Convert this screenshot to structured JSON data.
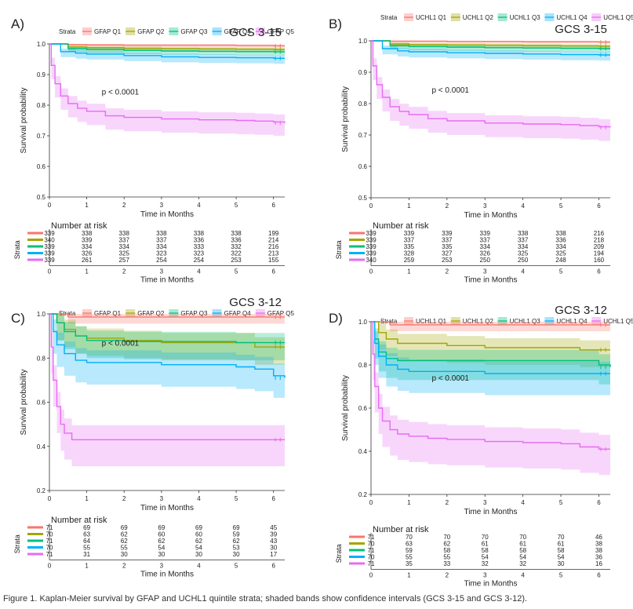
{
  "colors": {
    "q1": "#F8766D",
    "q2": "#A3A500",
    "q3": "#00BF7D",
    "q4": "#00B0F6",
    "q5": "#E76BF3"
  },
  "caption": "Figure 1. Kaplan-Meier survival by GFAP and UCHL1 quintile strata; shaded bands show confidence intervals (GCS 3-15 and GCS 3-12).",
  "chart_data": [
    {
      "id": "A",
      "panel_label": "A)",
      "type": "line",
      "subtitle": "GCS 3-15",
      "p_value": "p < 0.0001",
      "legend_title": "Strata",
      "legend_position": "top",
      "xlabel": "Time in Months",
      "ylabel": "Survival probability",
      "xlim": [
        0,
        6.3
      ],
      "ylim": [
        0.5,
        1.0
      ],
      "xticks": [
        0,
        1,
        2,
        3,
        4,
        5,
        6
      ],
      "yticks": [
        0.5,
        0.6,
        0.7,
        0.8,
        0.9,
        1.0
      ],
      "risk_title": "Number at risk",
      "risk_ylabel": "Strata",
      "series": [
        {
          "name": "GFAP Q1",
          "color": "#F8766D",
          "ci": 0.006,
          "x": [
            0,
            0.5,
            1,
            2,
            3,
            4,
            5,
            6,
            6.3
          ],
          "y": [
            1.0,
            0.998,
            0.997,
            0.996,
            0.996,
            0.996,
            0.995,
            0.994,
            0.994
          ],
          "risk": [
            339,
            338,
            338,
            338,
            338,
            338,
            199
          ]
        },
        {
          "name": "GFAP Q2",
          "color": "#A3A500",
          "ci": 0.01,
          "x": [
            0,
            0.5,
            1,
            2,
            3,
            4,
            5,
            6,
            6.3
          ],
          "y": [
            1.0,
            0.99,
            0.988,
            0.986,
            0.985,
            0.984,
            0.983,
            0.982,
            0.982
          ],
          "risk": [
            340,
            339,
            337,
            337,
            336,
            336,
            214
          ]
        },
        {
          "name": "GFAP Q3",
          "color": "#00BF7D",
          "ci": 0.012,
          "x": [
            0,
            0.5,
            1,
            2,
            3,
            4,
            5,
            6,
            6.3
          ],
          "y": [
            1.0,
            0.985,
            0.982,
            0.979,
            0.977,
            0.976,
            0.975,
            0.974,
            0.974
          ],
          "risk": [
            339,
            334,
            334,
            334,
            333,
            332,
            216
          ]
        },
        {
          "name": "GFAP Q4",
          "color": "#00B0F6",
          "ci": 0.018,
          "x": [
            0,
            0.3,
            0.7,
            1,
            2,
            3,
            4,
            5,
            6,
            6.3
          ],
          "y": [
            1.0,
            0.975,
            0.97,
            0.967,
            0.962,
            0.958,
            0.956,
            0.955,
            0.953,
            0.953
          ],
          "risk": [
            339,
            326,
            325,
            323,
            323,
            322,
            213
          ]
        },
        {
          "name": "GFAP Q5",
          "color": "#E76BF3",
          "ci": 0.045,
          "x": [
            0,
            0.05,
            0.15,
            0.3,
            0.5,
            0.75,
            1,
            1.5,
            2,
            3,
            4,
            5,
            5.5,
            6,
            6.3
          ],
          "y": [
            1.0,
            0.93,
            0.87,
            0.83,
            0.805,
            0.79,
            0.78,
            0.765,
            0.76,
            0.755,
            0.752,
            0.75,
            0.748,
            0.745,
            0.742
          ],
          "risk": [
            339,
            261,
            257,
            254,
            254,
            253,
            155
          ]
        }
      ]
    },
    {
      "id": "B",
      "panel_label": "B)",
      "type": "line",
      "subtitle": "GCS 3-15",
      "p_value": "p < 0.0001",
      "legend_title": "Strata",
      "legend_position": "top",
      "xlabel": "Time in Months",
      "ylabel": "Survival probability",
      "xlim": [
        0,
        6.3
      ],
      "ylim": [
        0.5,
        1.0
      ],
      "xticks": [
        0,
        1,
        2,
        3,
        4,
        5,
        6
      ],
      "yticks": [
        0.5,
        0.6,
        0.7,
        0.8,
        0.9,
        1.0
      ],
      "risk_title": "Number at risk",
      "risk_ylabel": "Strata",
      "series": [
        {
          "name": "UCHL1 Q1",
          "color": "#F8766D",
          "ci": 0.005,
          "x": [
            0,
            0.5,
            1,
            2,
            3,
            4,
            5,
            6,
            6.3
          ],
          "y": [
            1.0,
            0.999,
            0.999,
            0.998,
            0.998,
            0.997,
            0.997,
            0.996,
            0.996
          ],
          "risk": [
            339,
            339,
            339,
            339,
            338,
            338,
            216
          ]
        },
        {
          "name": "UCHL1 Q2",
          "color": "#A3A500",
          "ci": 0.01,
          "x": [
            0,
            0.5,
            1,
            2,
            3,
            4,
            5,
            6,
            6.3
          ],
          "y": [
            1.0,
            0.99,
            0.988,
            0.987,
            0.986,
            0.985,
            0.984,
            0.983,
            0.983
          ],
          "risk": [
            339,
            337,
            337,
            337,
            337,
            336,
            218
          ]
        },
        {
          "name": "UCHL1 Q3",
          "color": "#00BF7D",
          "ci": 0.012,
          "x": [
            0,
            0.5,
            1,
            2,
            3,
            4,
            5,
            6,
            6.3
          ],
          "y": [
            1.0,
            0.985,
            0.982,
            0.98,
            0.978,
            0.977,
            0.976,
            0.975,
            0.975
          ],
          "risk": [
            339,
            335,
            335,
            334,
            334,
            334,
            209
          ]
        },
        {
          "name": "UCHL1 Q4",
          "color": "#00B0F6",
          "ci": 0.018,
          "x": [
            0,
            0.3,
            0.7,
            1,
            2,
            3,
            4,
            5,
            6,
            6.3
          ],
          "y": [
            1.0,
            0.975,
            0.968,
            0.965,
            0.962,
            0.96,
            0.958,
            0.956,
            0.955,
            0.955
          ],
          "risk": [
            339,
            328,
            327,
            326,
            325,
            325,
            194
          ]
        },
        {
          "name": "UCHL1 Q5",
          "color": "#E76BF3",
          "ci": 0.045,
          "x": [
            0,
            0.05,
            0.15,
            0.3,
            0.5,
            0.75,
            1,
            1.5,
            2,
            3,
            4,
            5,
            5.5,
            6,
            6.3
          ],
          "y": [
            1.0,
            0.92,
            0.86,
            0.82,
            0.79,
            0.775,
            0.765,
            0.752,
            0.745,
            0.738,
            0.735,
            0.733,
            0.73,
            0.726,
            0.724
          ],
          "risk": [
            340,
            259,
            253,
            250,
            250,
            248,
            160
          ]
        }
      ]
    },
    {
      "id": "C",
      "panel_label": "C)",
      "type": "line",
      "subtitle": "GCS 3-12",
      "p_value": "p < 0.0001",
      "legend_title": "Strata",
      "legend_position": "top",
      "xlabel": "Time in Months",
      "ylabel": "Survival probability",
      "xlim": [
        0,
        6.3
      ],
      "ylim": [
        0.2,
        1.0
      ],
      "xticks": [
        0,
        1,
        2,
        3,
        4,
        5,
        6
      ],
      "yticks": [
        0.2,
        0.4,
        0.6,
        0.8,
        1.0
      ],
      "risk_title": "Number at risk",
      "risk_ylabel": "Strata",
      "series": [
        {
          "name": "GFAP Q1",
          "color": "#F8766D",
          "ci": 0.03,
          "x": [
            0,
            0.5,
            1,
            2,
            3,
            4,
            5,
            6,
            6.3
          ],
          "y": [
            1.0,
            0.986,
            0.986,
            0.986,
            0.986,
            0.986,
            0.986,
            0.986,
            0.986
          ],
          "risk": [
            71,
            69,
            69,
            69,
            69,
            69,
            45
          ]
        },
        {
          "name": "GFAP Q2",
          "color": "#A3A500",
          "ci": 0.08,
          "x": [
            0,
            0.2,
            0.4,
            0.7,
            1,
            2,
            3,
            4,
            5,
            5.5,
            6,
            6.3
          ],
          "y": [
            1.0,
            0.96,
            0.93,
            0.9,
            0.89,
            0.88,
            0.87,
            0.87,
            0.87,
            0.85,
            0.85,
            0.85
          ],
          "risk": [
            70,
            63,
            62,
            60,
            60,
            59,
            39
          ]
        },
        {
          "name": "GFAP Q3",
          "color": "#00BF7D",
          "ci": 0.08,
          "x": [
            0,
            0.2,
            0.4,
            0.7,
            1,
            2,
            3,
            4,
            5,
            6,
            6.3
          ],
          "y": [
            1.0,
            0.96,
            0.92,
            0.9,
            0.88,
            0.875,
            0.875,
            0.875,
            0.87,
            0.87,
            0.87
          ],
          "risk": [
            71,
            64,
            62,
            62,
            62,
            62,
            43
          ]
        },
        {
          "name": "GFAP Q4",
          "color": "#00B0F6",
          "ci": 0.1,
          "x": [
            0,
            0.1,
            0.2,
            0.4,
            0.7,
            1,
            2,
            3,
            4,
            5,
            5.5,
            6,
            6.3
          ],
          "y": [
            1.0,
            0.92,
            0.86,
            0.82,
            0.79,
            0.78,
            0.78,
            0.77,
            0.77,
            0.76,
            0.75,
            0.72,
            0.71
          ],
          "risk": [
            70,
            55,
            55,
            54,
            54,
            53,
            30
          ]
        },
        {
          "name": "GFAP Q5",
          "color": "#E76BF3",
          "ci": 0.12,
          "x": [
            0,
            0.05,
            0.1,
            0.2,
            0.3,
            0.4,
            0.6,
            1,
            2,
            3,
            4,
            5,
            6,
            6.3
          ],
          "y": [
            1.0,
            0.85,
            0.7,
            0.58,
            0.5,
            0.46,
            0.43,
            0.43,
            0.43,
            0.43,
            0.43,
            0.43,
            0.43,
            0.43
          ],
          "risk": [
            71,
            31,
            30,
            30,
            30,
            30,
            17
          ]
        }
      ]
    },
    {
      "id": "D",
      "panel_label": "D)",
      "type": "line",
      "subtitle": "GCS 3-12",
      "p_value": "p < 0.0001",
      "legend_title": "Strata",
      "legend_position": "top",
      "xlabel": "Time in Months",
      "ylabel": "Survival probability",
      "xlim": [
        0,
        6.3
      ],
      "ylim": [
        0.2,
        1.0
      ],
      "xticks": [
        0,
        1,
        2,
        3,
        4,
        5,
        6
      ],
      "yticks": [
        0.2,
        0.4,
        0.6,
        0.8,
        1.0
      ],
      "risk_title": "Number at risk",
      "risk_ylabel": "Strata",
      "series": [
        {
          "name": "UCHL1 Q1",
          "color": "#F8766D",
          "ci": 0.03,
          "x": [
            0,
            0.5,
            1,
            2,
            3,
            4,
            5,
            6,
            6.3
          ],
          "y": [
            1.0,
            0.986,
            0.986,
            0.986,
            0.986,
            0.986,
            0.986,
            0.986,
            0.986
          ],
          "risk": [
            71,
            70,
            70,
            70,
            70,
            70,
            46
          ]
        },
        {
          "name": "UCHL1 Q2",
          "color": "#A3A500",
          "ci": 0.08,
          "x": [
            0,
            0.2,
            0.4,
            0.7,
            1,
            2,
            3,
            4,
            5,
            5.5,
            6,
            6.3
          ],
          "y": [
            1.0,
            0.95,
            0.92,
            0.9,
            0.9,
            0.89,
            0.88,
            0.88,
            0.88,
            0.87,
            0.87,
            0.87
          ],
          "risk": [
            70,
            63,
            62,
            61,
            61,
            61,
            38
          ]
        },
        {
          "name": "UCHL1 Q3",
          "color": "#00BF7D",
          "ci": 0.09,
          "x": [
            0,
            0.1,
            0.2,
            0.4,
            0.7,
            1,
            2,
            3,
            4,
            5,
            6,
            6.3
          ],
          "y": [
            1.0,
            0.92,
            0.86,
            0.83,
            0.82,
            0.82,
            0.82,
            0.82,
            0.82,
            0.82,
            0.8,
            0.79
          ],
          "risk": [
            71,
            59,
            58,
            58,
            58,
            58,
            38
          ]
        },
        {
          "name": "UCHL1 Q4",
          "color": "#00B0F6",
          "ci": 0.1,
          "x": [
            0,
            0.1,
            0.2,
            0.4,
            0.7,
            1,
            2,
            3,
            4,
            5,
            6,
            6.3
          ],
          "y": [
            1.0,
            0.9,
            0.84,
            0.8,
            0.78,
            0.77,
            0.77,
            0.76,
            0.76,
            0.76,
            0.76,
            0.76
          ],
          "risk": [
            70,
            55,
            55,
            54,
            54,
            54,
            36
          ]
        },
        {
          "name": "UCHL1 Q5",
          "color": "#E76BF3",
          "ci": 0.12,
          "x": [
            0,
            0.05,
            0.1,
            0.2,
            0.3,
            0.5,
            0.7,
            1,
            1.5,
            2,
            3,
            4,
            5,
            5.5,
            6,
            6.3
          ],
          "y": [
            1.0,
            0.85,
            0.7,
            0.6,
            0.54,
            0.5,
            0.48,
            0.47,
            0.46,
            0.455,
            0.445,
            0.44,
            0.435,
            0.42,
            0.41,
            0.41
          ],
          "risk": [
            71,
            35,
            33,
            32,
            32,
            30,
            16
          ]
        }
      ]
    }
  ]
}
